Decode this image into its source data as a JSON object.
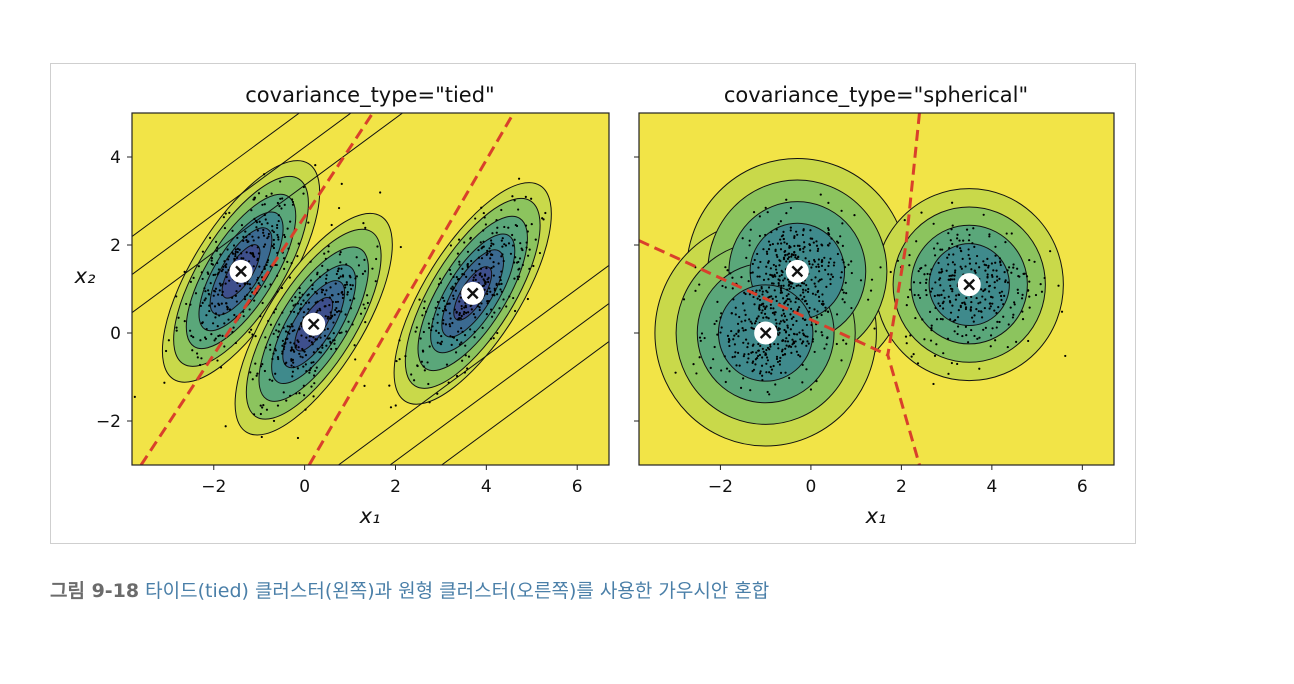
{
  "chart_data": [
    {
      "type": "scatter",
      "title": "covariance_type=\"tied\"",
      "xlabel": "x₁",
      "ylabel": "x₂",
      "xlim": [
        -3.8,
        6.7
      ],
      "ylim": [
        -3.0,
        5.0
      ],
      "xticks": [
        -2,
        0,
        2,
        4,
        6
      ],
      "yticks": [
        -2,
        0,
        2,
        4
      ],
      "xtick_labels": [
        "−2",
        "0",
        "2",
        "4",
        "6"
      ],
      "ytick_labels": [
        "−2",
        "0",
        "2",
        "4"
      ],
      "centroids": [
        {
          "x": -1.4,
          "y": 1.4
        },
        {
          "x": 0.2,
          "y": 0.2
        },
        {
          "x": 3.7,
          "y": 0.9
        }
      ],
      "decision_boundaries": [
        [
          [
            -3.6,
            -3.0
          ],
          [
            1.5,
            5.0
          ]
        ],
        [
          [
            0.1,
            -3.0
          ],
          [
            4.6,
            5.0
          ]
        ]
      ],
      "grid": false
    },
    {
      "type": "scatter",
      "title": "covariance_type=\"spherical\"",
      "xlabel": "x₁",
      "ylabel": "",
      "xlim": [
        -3.8,
        6.7
      ],
      "ylim": [
        -3.0,
        5.0
      ],
      "xticks": [
        -2,
        0,
        2,
        4,
        6
      ],
      "yticks": [
        -2,
        0,
        2,
        4
      ],
      "xtick_labels": [
        "−2",
        "0",
        "2",
        "4",
        "6"
      ],
      "ytick_labels": [
        "",
        "",
        "",
        ""
      ],
      "centroids": [
        {
          "x": -0.3,
          "y": 1.4
        },
        {
          "x": -1.0,
          "y": 0.0
        },
        {
          "x": 3.5,
          "y": 1.1
        }
      ],
      "decision_boundaries": [
        [
          [
            -3.8,
            2.1
          ],
          [
            1.7,
            -0.5
          ]
        ],
        [
          [
            2.4,
            5.0
          ],
          [
            2.1,
            2.0
          ],
          [
            1.7,
            -0.5
          ],
          [
            2.4,
            -3.0
          ]
        ]
      ],
      "grid": false
    }
  ],
  "colors": {
    "boundary": "#d9402b",
    "contour_line": "#111111",
    "levels": [
      "#3e4f8c",
      "#3b6a91",
      "#3f8a8c",
      "#5aa77a",
      "#8cc45e",
      "#c9d94a",
      "#f2e447"
    ]
  },
  "caption": {
    "label": "그림 9-18",
    "text": "타이드(tied) 클러스터(왼쪽)과 원형 클러스터(오른쪽)를 사용한 가우시안 혼합"
  }
}
